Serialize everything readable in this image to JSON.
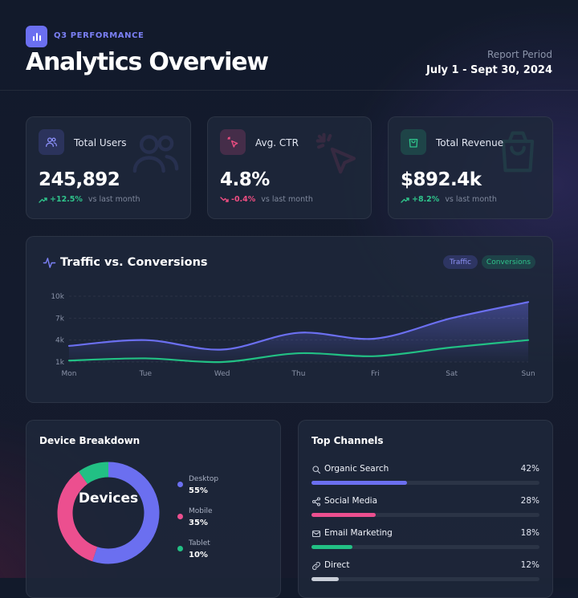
{
  "header": {
    "eyebrow": "Q3 PERFORMANCE",
    "title": "Analytics Overview",
    "period_label": "Report Period",
    "period_value": "July 1 - Sept 30, 2024",
    "logo_icon": "bar-chart-icon"
  },
  "kpis": [
    {
      "label": "Total Users",
      "value": "245,892",
      "delta": "+12.5%",
      "comparison": "vs last month",
      "trend": "up",
      "icon": "users-icon",
      "color": "#7b80f5"
    },
    {
      "label": "Avg. CTR",
      "value": "4.8%",
      "delta": "-0.4%",
      "comparison": "vs last month",
      "trend": "down",
      "icon": "cursor-click-icon",
      "color": "#ef4e82"
    },
    {
      "label": "Total Revenue",
      "value": "$892.4k",
      "delta": "+8.2%",
      "comparison": "vs last month",
      "trend": "up",
      "icon": "shopping-bag-icon",
      "color": "#2fc48b"
    }
  ],
  "traffic_chart": {
    "title": "Traffic vs. Conversions",
    "icon": "activity-icon",
    "legend": [
      "Traffic",
      "Conversions"
    ]
  },
  "chart_data": {
    "type": "area",
    "categories": [
      "Mon",
      "Tue",
      "Wed",
      "Thu",
      "Fri",
      "Sat",
      "Sun"
    ],
    "yticks": [
      "10k",
      "7k",
      "4k",
      "1k"
    ],
    "ylim": [
      1,
      10
    ],
    "grid": true,
    "series": [
      {
        "name": "Traffic",
        "values": [
          3.2,
          4.0,
          2.7,
          5.0,
          4.2,
          7.0,
          9.2
        ],
        "color": "#6b6ff0",
        "area": true
      },
      {
        "name": "Conversions",
        "values": [
          1.2,
          1.5,
          1.0,
          2.2,
          1.8,
          3.0,
          4.0
        ],
        "color": "#22c084",
        "area": false
      }
    ]
  },
  "devices": {
    "title": "Device Breakdown",
    "center_label": "Devices",
    "items": [
      {
        "name": "Desktop",
        "value": "55%",
        "share": 55,
        "color": "#6b6ff0"
      },
      {
        "name": "Mobile",
        "value": "35%",
        "share": 35,
        "color": "#ec4f8f"
      },
      {
        "name": "Tablet",
        "value": "10%",
        "share": 10,
        "color": "#22c084"
      }
    ]
  },
  "channels": {
    "title": "Top Channels",
    "items": [
      {
        "name": "Organic Search",
        "value": "42%",
        "share": 42,
        "color": "#6b6ff0",
        "icon": "search-icon"
      },
      {
        "name": "Social Media",
        "value": "28%",
        "share": 28,
        "color": "#ec4f8f",
        "icon": "share-icon"
      },
      {
        "name": "Email Marketing",
        "value": "18%",
        "share": 18,
        "color": "#22c084",
        "icon": "mail-icon"
      },
      {
        "name": "Direct",
        "value": "12%",
        "share": 12,
        "color": "#c9ced8",
        "icon": "link-icon"
      }
    ]
  }
}
